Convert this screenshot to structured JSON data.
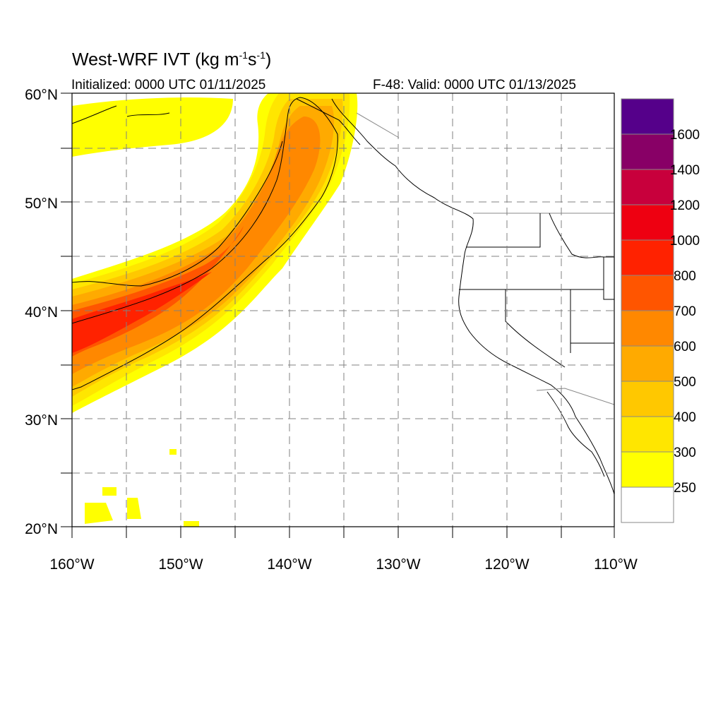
{
  "title": {
    "prefix": "West-WRF IVT (kg m",
    "sup1": "-1",
    "mid": "s",
    "sup2": "-1",
    "suffix": ")"
  },
  "initialized": "Initialized: 0000 UTC 01/11/2025",
  "valid": "F-48: Valid: 0000 UTC 01/13/2025",
  "axes": {
    "lat_labels": [
      "60°N",
      "50°N",
      "40°N",
      "30°N",
      "20°N"
    ],
    "lon_labels": [
      "160°W",
      "150°W",
      "140°W",
      "130°W",
      "120°W",
      "110°W"
    ],
    "lat_range": [
      20,
      60
    ],
    "lon_range": [
      -160,
      -110
    ],
    "grid": "dashed every 5°"
  },
  "colorbar": {
    "levels": [
      250,
      300,
      400,
      500,
      600,
      700,
      800,
      1000,
      1200,
      1400,
      1600
    ],
    "labels": [
      "250",
      "300",
      "400",
      "500",
      "600",
      "700",
      "800",
      "1000",
      "1200",
      "1400",
      "1600"
    ],
    "colors": [
      "#ffffff",
      "#ffff00",
      "#ffe600",
      "#ffc800",
      "#ffaa00",
      "#ff8800",
      "#ff5500",
      "#ff2200",
      "#ee0011",
      "#c8003c",
      "#880066",
      "#55008a"
    ]
  }
}
